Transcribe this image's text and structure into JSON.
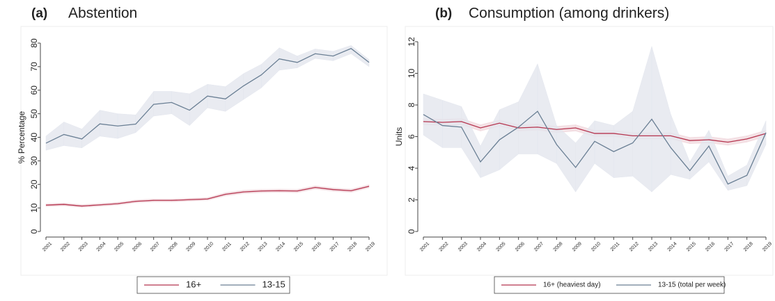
{
  "chart_data": [
    {
      "type": "line",
      "panel": "(a)",
      "title": "Abstention",
      "y_label": "% Percentage",
      "categories": [
        "2001",
        "2002",
        "2003",
        "2004",
        "2005",
        "2006",
        "2007",
        "2008",
        "2009",
        "2010",
        "2011",
        "2012",
        "2013",
        "2014",
        "2015",
        "2016",
        "2017",
        "2018",
        "2019"
      ],
      "ylim": [
        0,
        80
      ],
      "yticks": [
        0,
        10,
        20,
        30,
        40,
        50,
        60,
        70,
        80
      ],
      "series": [
        {
          "name": "16+",
          "color": "#b5344e",
          "band_color": "#f1d9de",
          "values": [
            11.2,
            11.5,
            10.8,
            11.3,
            11.8,
            12.8,
            13.2,
            13.2,
            13.5,
            13.8,
            15.8,
            16.8,
            17.2,
            17.3,
            17.2,
            18.7,
            17.8,
            17.3,
            19.2
          ],
          "lower": [
            10.6,
            10.9,
            10.2,
            10.7,
            11.2,
            12.2,
            12.6,
            12.6,
            12.9,
            13.2,
            15.1,
            16.1,
            16.5,
            16.6,
            16.5,
            18.0,
            17.1,
            16.6,
            18.5
          ],
          "upper": [
            11.8,
            12.1,
            11.4,
            11.9,
            12.4,
            13.4,
            13.8,
            13.8,
            14.1,
            14.4,
            16.5,
            17.5,
            17.9,
            18.0,
            17.9,
            19.4,
            18.5,
            18.0,
            19.9
          ]
        },
        {
          "name": "13-15",
          "color": "#6a7f94",
          "band_color": "#e3e6ee",
          "values": [
            37.5,
            41.2,
            39.3,
            45.7,
            44.8,
            45.6,
            54.0,
            54.8,
            51.5,
            57.5,
            56.3,
            61.8,
            66.5,
            73.3,
            71.8,
            75.5,
            74.5,
            77.7,
            71.8
          ],
          "lower": [
            34.5,
            36.5,
            35.5,
            40.5,
            39.5,
            42,
            49,
            50,
            45,
            52.5,
            51,
            56,
            61,
            68.5,
            69.5,
            73.5,
            72.5,
            75.5,
            70
          ],
          "upper": [
            40.5,
            46.5,
            43.5,
            51.5,
            50,
            49.5,
            59.5,
            59.5,
            58.5,
            62.5,
            61.5,
            67,
            71,
            78,
            74.5,
            77.5,
            76.5,
            79,
            73
          ]
        }
      ]
    },
    {
      "type": "line",
      "panel": "(b)",
      "title": "Consumption (among drinkers)",
      "y_label": "Units",
      "categories": [
        "2001",
        "2002",
        "2003",
        "2004",
        "2005",
        "2006",
        "2007",
        "2008",
        "2009",
        "2010",
        "2011",
        "2012",
        "2013",
        "2014",
        "2015",
        "2016",
        "2017",
        "2018",
        "2019"
      ],
      "ylim": [
        0,
        12
      ],
      "yticks": [
        0,
        2,
        4,
        6,
        8,
        10,
        12
      ],
      "series": [
        {
          "name": "16+ (heaviest day)",
          "color": "#b5344e",
          "band_color": "#f1d9de",
          "values": [
            6.95,
            6.9,
            6.95,
            6.55,
            6.85,
            6.55,
            6.6,
            6.45,
            6.55,
            6.2,
            6.2,
            6.05,
            6.05,
            6.05,
            5.75,
            5.8,
            5.65,
            5.85,
            6.2
          ],
          "lower": [
            6.75,
            6.7,
            6.75,
            6.35,
            6.65,
            6.35,
            6.4,
            6.25,
            6.35,
            6.0,
            6.0,
            5.85,
            5.85,
            5.85,
            5.55,
            5.6,
            5.45,
            5.65,
            6.0
          ],
          "upper": [
            7.15,
            7.1,
            7.15,
            6.75,
            7.05,
            6.75,
            6.8,
            6.65,
            6.75,
            6.4,
            6.4,
            6.25,
            6.25,
            6.25,
            5.95,
            6.0,
            5.85,
            6.05,
            6.4
          ]
        },
        {
          "name": "13-15 (total per week)",
          "color": "#6a7f94",
          "band_color": "#e3e6ee",
          "values": [
            7.4,
            6.7,
            6.6,
            4.4,
            5.8,
            6.6,
            7.6,
            5.5,
            4.05,
            5.7,
            5.05,
            5.6,
            7.1,
            5.3,
            3.85,
            5.4,
            3.0,
            3.55,
            6.25
          ],
          "lower": [
            6.1,
            5.3,
            5.3,
            3.4,
            3.9,
            4.9,
            4.9,
            4.3,
            2.5,
            4.3,
            3.4,
            3.5,
            2.5,
            3.6,
            3.3,
            4.4,
            2.6,
            2.9,
            5.5
          ],
          "upper": [
            8.7,
            8.3,
            7.9,
            5.4,
            7.7,
            8.2,
            10.6,
            6.7,
            5.6,
            7.0,
            6.7,
            7.6,
            11.7,
            7.4,
            4.4,
            6.4,
            3.5,
            4.2,
            7.0
          ]
        }
      ]
    }
  ]
}
